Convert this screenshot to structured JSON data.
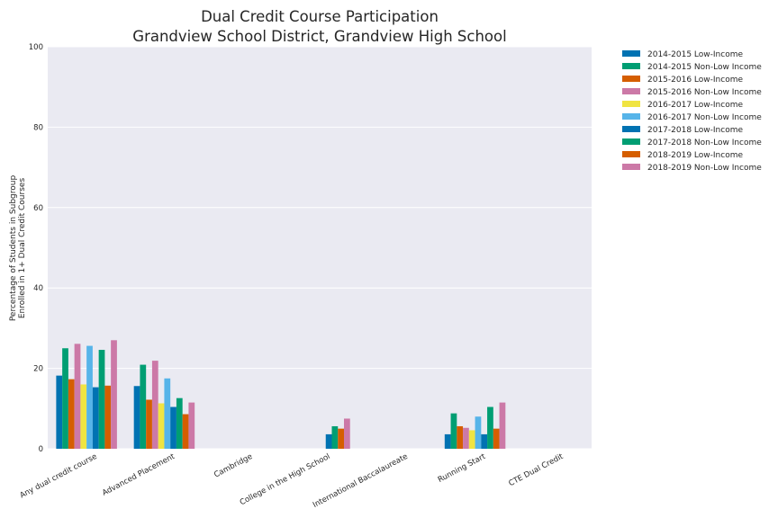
{
  "chart_data": {
    "type": "bar",
    "title": "Dual Credit Course Participation",
    "subtitle": "Grandview School District, Grandview High School",
    "ylabel_line1": "Percentage of Students in Subgroup",
    "ylabel_line2": "Enrolled in 1+ Dual Credit Courses",
    "xlabel": "",
    "ylim": [
      0,
      100
    ],
    "yticks": [
      0,
      20,
      40,
      60,
      80,
      100
    ],
    "grid": true,
    "legend_position": "outside-top-right",
    "categories": [
      "Any dual credit course",
      "Advanced Placement",
      "Cambridge",
      "College in the High School",
      "International Baccalaureate",
      "Running Start",
      "CTE Dual Credit"
    ],
    "series": [
      {
        "name": "2014-2015 Low-Income",
        "color": "#0072b2",
        "values": [
          18.2,
          15.6,
          null,
          null,
          null,
          3.6,
          null
        ]
      },
      {
        "name": "2014-2015 Non-Low Income",
        "color": "#009e73",
        "values": [
          25.0,
          20.9,
          null,
          null,
          null,
          8.8,
          null
        ]
      },
      {
        "name": "2015-2016 Low-Income",
        "color": "#d55e00",
        "values": [
          17.3,
          12.2,
          null,
          null,
          null,
          5.6,
          null
        ]
      },
      {
        "name": "2015-2016 Non-Low Income",
        "color": "#cc79a7",
        "values": [
          26.1,
          21.9,
          null,
          null,
          null,
          5.2,
          null
        ]
      },
      {
        "name": "2016-2017 Low-Income",
        "color": "#f0e442",
        "values": [
          16.0,
          11.3,
          null,
          null,
          null,
          4.6,
          null
        ]
      },
      {
        "name": "2016-2017 Non-Low Income",
        "color": "#56b4e9",
        "values": [
          25.6,
          17.5,
          null,
          null,
          null,
          8.0,
          null
        ]
      },
      {
        "name": "2017-2018 Low-Income",
        "color": "#0072b2",
        "values": [
          15.3,
          10.4,
          null,
          3.6,
          null,
          3.6,
          null
        ]
      },
      {
        "name": "2017-2018 Non-Low Income",
        "color": "#009e73",
        "values": [
          24.6,
          12.6,
          null,
          5.6,
          null,
          10.4,
          null
        ]
      },
      {
        "name": "2018-2019 Low-Income",
        "color": "#d55e00",
        "values": [
          15.7,
          8.6,
          null,
          5.0,
          null,
          5.0,
          null
        ]
      },
      {
        "name": "2018-2019 Non-Low Income",
        "color": "#cc79a7",
        "values": [
          27.0,
          11.5,
          null,
          7.5,
          null,
          11.5,
          null
        ]
      }
    ]
  }
}
